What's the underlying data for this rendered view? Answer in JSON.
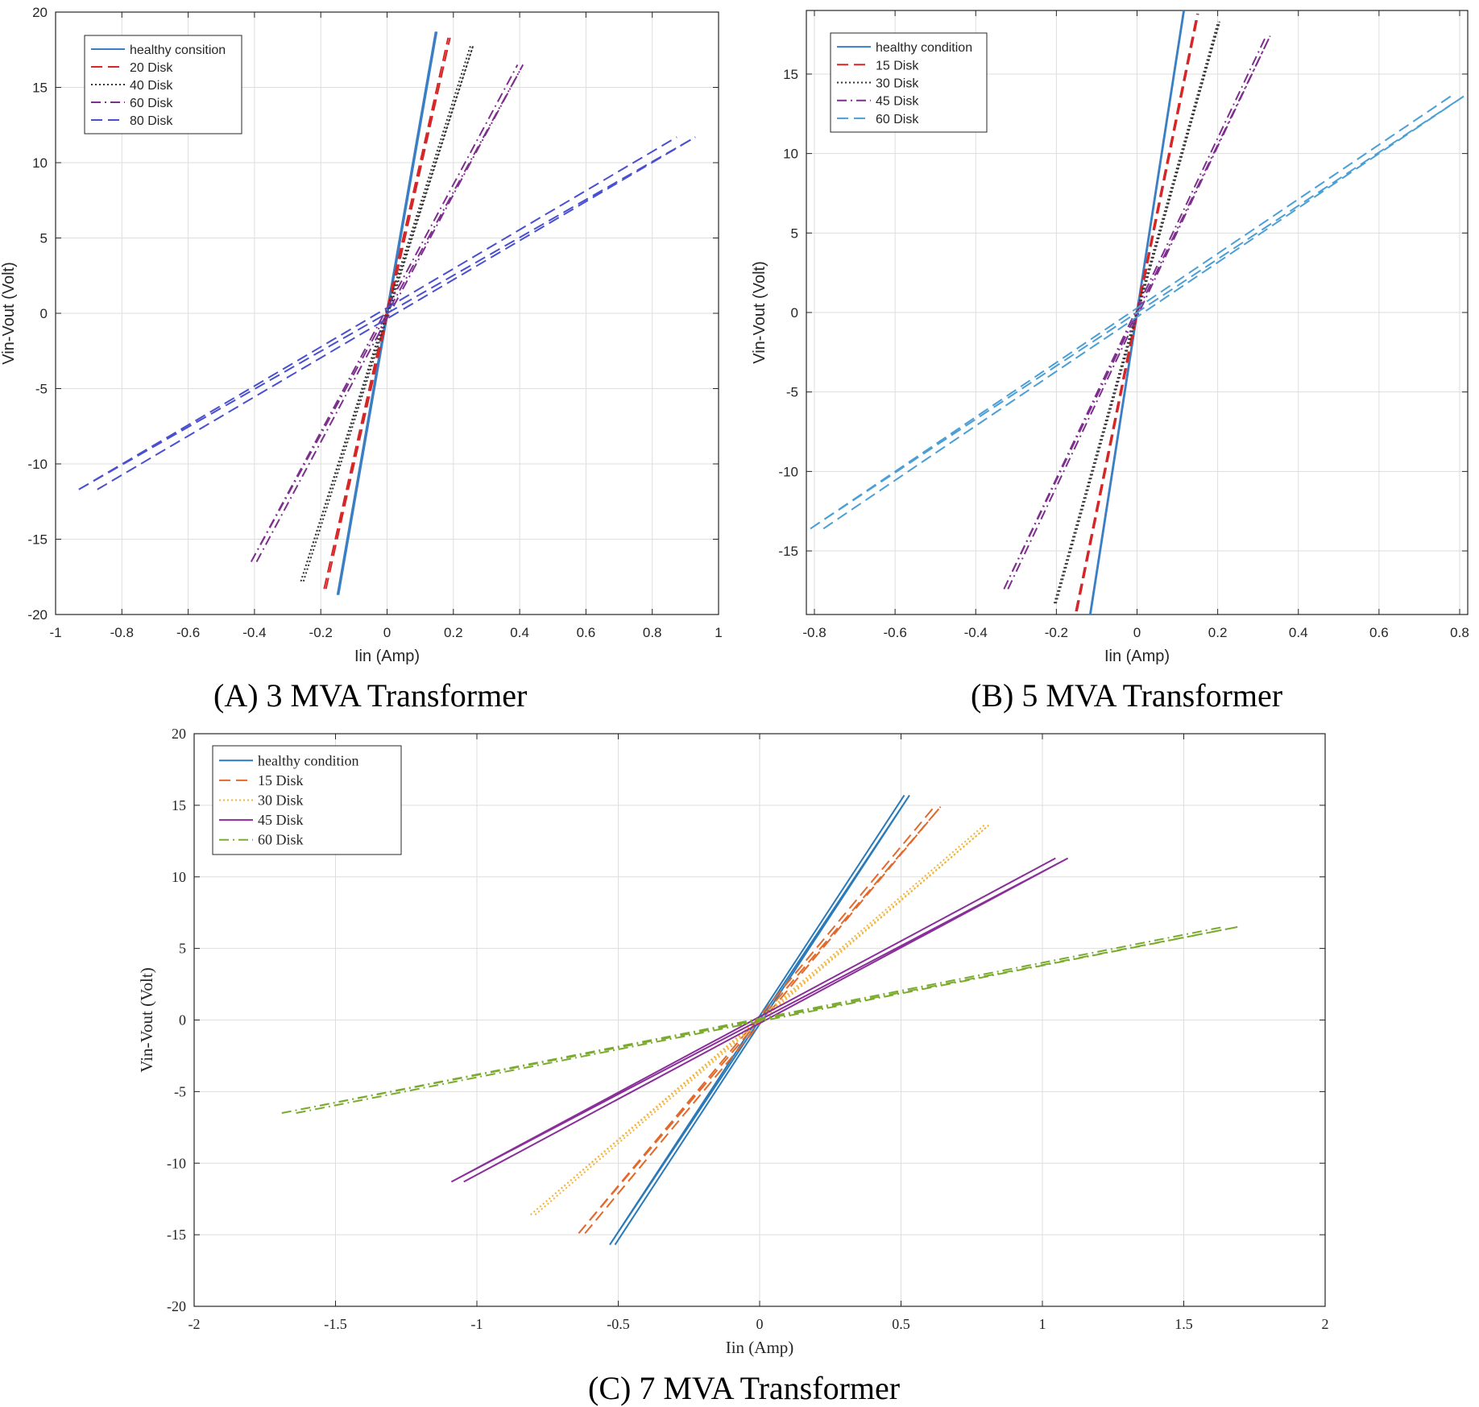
{
  "chart_data": [
    {
      "id": "A",
      "type": "line",
      "caption": "(A) 3 MVA Transformer",
      "xlabel": "Iin  (Amp)",
      "ylabel": "Vin-Vout  (Volt)",
      "xlim": [
        -1,
        1
      ],
      "ylim": [
        -20,
        20
      ],
      "xticks": [
        -1,
        -0.8,
        -0.6,
        -0.4,
        -0.2,
        0,
        0.2,
        0.4,
        0.6,
        0.8,
        1
      ],
      "yticks": [
        -20,
        -15,
        -10,
        -5,
        0,
        5,
        10,
        15,
        20
      ],
      "xtick_labels": [
        "-1",
        "-0.8",
        "-0.6",
        "-0.4",
        "-0.2",
        "0",
        "0.2",
        "0.4",
        "0.6",
        "0.8",
        "1"
      ],
      "ytick_labels": [
        "-20",
        "-15",
        "-10",
        "-5",
        "0",
        "5",
        "10",
        "15",
        "20"
      ],
      "grid": true,
      "legend_position": "top-left",
      "series": [
        {
          "name": "healthy consition",
          "color": "#3a7fc4",
          "dash": "solid",
          "xmax": 0.15,
          "ymax": 18.7,
          "loop": 0.025
        },
        {
          "name": "20 Disk",
          "color": "#d62728",
          "dash": "dashed",
          "xmax": 0.19,
          "ymax": 18.3,
          "loop": 0.03
        },
        {
          "name": "40 Disk",
          "color": "#333333",
          "dash": "dotted",
          "xmax": 0.26,
          "ymax": 17.8,
          "loop": 0.03
        },
        {
          "name": "60 Disk",
          "color": "#7e2f8e",
          "dash": "dashdot",
          "xmax": 0.41,
          "ymax": 16.5,
          "loop": 0.04
        },
        {
          "name": "80 Disk",
          "color": "#4a4fcf",
          "dash": "dashed",
          "xmax": 0.93,
          "ymax": 11.7,
          "loop": 0.06
        }
      ]
    },
    {
      "id": "B",
      "type": "line",
      "caption": "(B) 5 MVA Transformer",
      "xlabel": "Iin  (Amp)",
      "ylabel": "Vin-Vout  (Volt)",
      "xlim": [
        -0.82,
        0.82
      ],
      "ylim": [
        -19,
        19
      ],
      "xticks": [
        -0.8,
        -0.6,
        -0.4,
        -0.2,
        0,
        0.2,
        0.4,
        0.6,
        0.8
      ],
      "yticks": [
        -15,
        -10,
        -5,
        0,
        5,
        10,
        15
      ],
      "xtick_labels": [
        "-0.8",
        "-0.6",
        "-0.4",
        "-0.2",
        "0",
        "0.2",
        "0.4",
        "0.6",
        "0.8"
      ],
      "ytick_labels": [
        "-15",
        "-10",
        "-5",
        "0",
        "5",
        "10",
        "15"
      ],
      "grid": true,
      "legend_position": "top-left",
      "series": [
        {
          "name": "healthy condition",
          "color": "#3a7fc4",
          "dash": "solid",
          "xmax": 0.117,
          "ymax": 19.0,
          "loop": 0.015
        },
        {
          "name": "15 Disk",
          "color": "#d62728",
          "dash": "dashed",
          "xmax": 0.152,
          "ymax": 18.8,
          "loop": 0.02
        },
        {
          "name": "30 Disk",
          "color": "#333333",
          "dash": "dotted",
          "xmax": 0.205,
          "ymax": 18.3,
          "loop": 0.02
        },
        {
          "name": "45 Disk",
          "color": "#7e2f8e",
          "dash": "dashdot",
          "xmax": 0.33,
          "ymax": 17.4,
          "loop": 0.03
        },
        {
          "name": "60 Disk",
          "color": "#4b9fd5",
          "dash": "dashed",
          "xmax": 0.81,
          "ymax": 13.6,
          "loop": 0.04
        }
      ]
    },
    {
      "id": "C",
      "type": "line",
      "caption": "(C) 7 MVA Transformer",
      "xlabel": "Iin  (Amp)",
      "ylabel": "Vin-Vout  (Volt)",
      "xlim": [
        -2,
        2
      ],
      "ylim": [
        -20,
        20
      ],
      "xticks": [
        -2,
        -1.5,
        -1,
        -0.5,
        0,
        0.5,
        1,
        1.5,
        2
      ],
      "yticks": [
        -20,
        -15,
        -10,
        -5,
        0,
        5,
        10,
        15,
        20
      ],
      "xtick_labels": [
        "-2",
        "-1.5",
        "-1",
        "-0.5",
        "0",
        "0.5",
        "1",
        "1.5",
        "2"
      ],
      "ytick_labels": [
        "-20",
        "-15",
        "-10",
        "-5",
        "0",
        "5",
        "10",
        "15",
        "20"
      ],
      "grid": true,
      "legend_position": "top-left",
      "series": [
        {
          "name": "healthy condition",
          "color": "#2a7ab9",
          "dash": "solid",
          "xmax": 0.53,
          "ymax": 15.7,
          "loop": 0.035
        },
        {
          "name": "15 Disk",
          "color": "#e2692c",
          "dash": "dashed",
          "xmax": 0.64,
          "ymax": 14.9,
          "loop": 0.035
        },
        {
          "name": "30 Disk",
          "color": "#f0b43a",
          "dash": "dotted",
          "xmax": 0.81,
          "ymax": 13.6,
          "loop": 0.02
        },
        {
          "name": "45 Disk",
          "color": "#8a2f9a",
          "dash": "solid",
          "xmax": 1.09,
          "ymax": 11.3,
          "loop": 0.04
        },
        {
          "name": "60 Disk",
          "color": "#7bab2e",
          "dash": "dashdot",
          "xmax": 1.69,
          "ymax": 6.5,
          "loop": 0.03
        }
      ]
    }
  ]
}
